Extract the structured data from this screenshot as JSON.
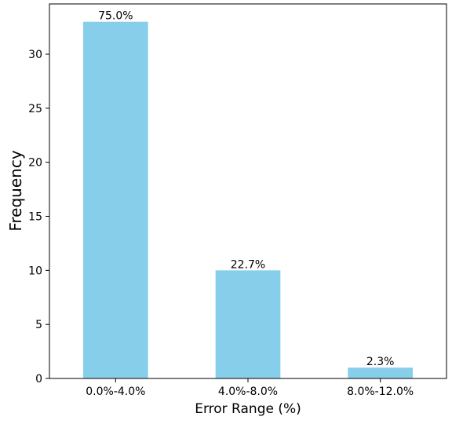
{
  "chart_data": {
    "type": "bar",
    "title": "",
    "xlabel": "Error Range (%)",
    "ylabel": "Frequency",
    "categories": [
      "0.0%-4.0%",
      "4.0%-8.0%",
      "8.0%-12.0%"
    ],
    "values": [
      33,
      10,
      1
    ],
    "data_labels": [
      "75.0%",
      "22.7%",
      "2.3%"
    ],
    "ylim": [
      0,
      34.65
    ],
    "yticks": [
      0,
      5,
      10,
      15,
      20,
      25,
      30
    ],
    "grid": false,
    "legend": "none",
    "bar_color": "#87ceeb"
  }
}
